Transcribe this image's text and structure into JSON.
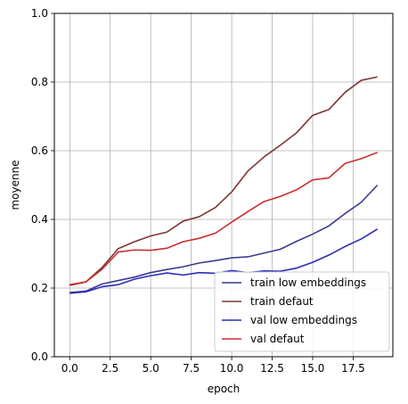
{
  "chart_data": {
    "type": "line",
    "xlabel": "epoch",
    "ylabel": "moyenne",
    "xlim": [
      -0.95,
      19.95
    ],
    "ylim": [
      0.0,
      1.0
    ],
    "xticks": [
      0.0,
      2.5,
      5.0,
      7.5,
      10.0,
      12.5,
      15.0,
      17.5
    ],
    "xtick_labels": [
      "0.0",
      "2.5",
      "5.0",
      "7.5",
      "10.0",
      "12.5",
      "15.0",
      "17.5"
    ],
    "yticks": [
      0.0,
      0.2,
      0.4,
      0.6,
      0.8,
      1.0
    ],
    "ytick_labels": [
      "0.0",
      "0.2",
      "0.4",
      "0.6",
      "0.8",
      "1.0"
    ],
    "grid": true,
    "legend_position": "lower-right",
    "x": [
      0,
      1,
      2,
      3,
      4,
      5,
      6,
      7,
      8,
      9,
      10,
      11,
      12,
      13,
      14,
      15,
      16,
      17,
      18,
      19
    ],
    "series": [
      {
        "name": "train low embeddings",
        "color": "#3a3a8f",
        "values": [
          0.187,
          0.191,
          0.212,
          0.222,
          0.232,
          0.245,
          0.254,
          0.262,
          0.273,
          0.28,
          0.288,
          0.291,
          0.302,
          0.313,
          0.336,
          0.357,
          0.381,
          0.417,
          0.45,
          0.5
        ]
      },
      {
        "name": "train defaut",
        "color": "#7f3535",
        "values": [
          0.208,
          0.218,
          0.26,
          0.315,
          0.335,
          0.352,
          0.363,
          0.395,
          0.408,
          0.435,
          0.48,
          0.541,
          0.582,
          0.616,
          0.652,
          0.703,
          0.72,
          0.77,
          0.805,
          0.815
        ]
      },
      {
        "name": "val low embeddings",
        "color": "#2b2bbd",
        "values": [
          0.185,
          0.189,
          0.204,
          0.21,
          0.226,
          0.236,
          0.244,
          0.238,
          0.245,
          0.243,
          0.251,
          0.245,
          0.25,
          0.249,
          0.258,
          0.275,
          0.296,
          0.321,
          0.343,
          0.372
        ]
      },
      {
        "name": "val defaut",
        "color": "#cc2e2e",
        "values": [
          0.21,
          0.218,
          0.255,
          0.305,
          0.311,
          0.31,
          0.316,
          0.335,
          0.345,
          0.36,
          0.392,
          0.423,
          0.452,
          0.467,
          0.486,
          0.515,
          0.521,
          0.563,
          0.577,
          0.595
        ]
      }
    ]
  }
}
